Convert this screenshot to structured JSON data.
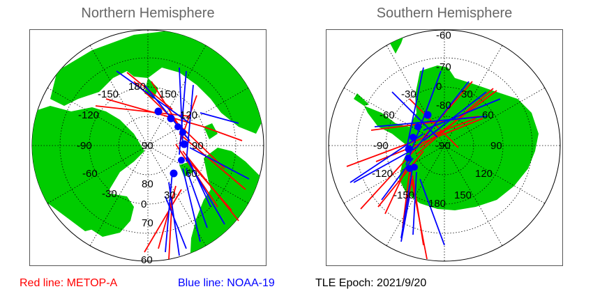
{
  "titles": {
    "north": "Northern Hemisphere",
    "south": "Southern Hemisphere"
  },
  "legend": {
    "red": "Red line: METOP-A",
    "blue": "Blue line: NOAA-19",
    "epoch": "TLE Epoch: 2021/9/20"
  },
  "colors": {
    "land": "#00cc00",
    "ocean": "#ffffff",
    "metop": "#ff0000",
    "noaa": "#0000ff",
    "graticule": "#000000"
  },
  "north_labels": {
    "lon": [
      "-150",
      "180",
      "150",
      "-120",
      "120",
      "-90",
      "90",
      "-60",
      "60",
      "-30",
      "30",
      "0"
    ],
    "lat": [
      "90",
      "80",
      "70",
      "60"
    ]
  },
  "south_labels": {
    "lon": [
      "-30",
      "0",
      "30",
      "-60",
      "60",
      "-90",
      "90",
      "-120",
      "120",
      "-150",
      "180",
      "150"
    ],
    "lat": [
      "-60",
      "-70",
      "-80",
      "-90"
    ]
  }
}
